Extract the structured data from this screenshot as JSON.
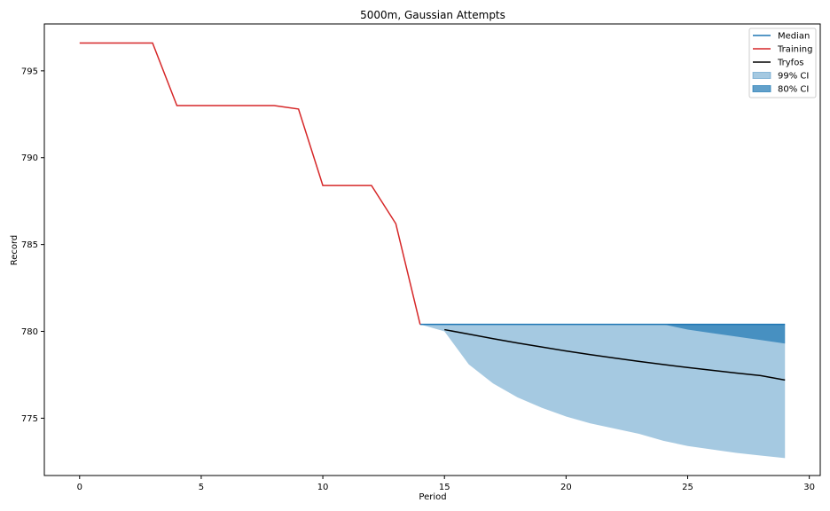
{
  "chart_data": {
    "type": "line",
    "title": "5000m, Gaussian Attempts",
    "xlabel": "Period",
    "ylabel": "Record",
    "xlim": [
      -1.45,
      30.45
    ],
    "ylim": [
      771.7,
      797.7
    ],
    "xticks": [
      0,
      5,
      10,
      15,
      20,
      25,
      30
    ],
    "yticks": [
      775,
      780,
      785,
      790,
      795
    ],
    "grid": false,
    "legend_position": "top-right",
    "colors": {
      "median": "#1f77b4",
      "training": "#d62728",
      "tryfos": "#000000",
      "ci99": "#1f77b4",
      "ci80": "#1f77b4"
    },
    "legend": [
      {
        "label": "Median",
        "kind": "line",
        "color": "#1f77b4"
      },
      {
        "label": "Training",
        "kind": "line",
        "color": "#d62728"
      },
      {
        "label": "Tryfos",
        "kind": "line",
        "color": "#000000"
      },
      {
        "label": "99% CI",
        "kind": "patch",
        "color": "#1f77b4",
        "opacity": 0.4
      },
      {
        "label": "80% CI",
        "kind": "patch",
        "color": "#1f77b4",
        "opacity": 0.7
      }
    ],
    "series": {
      "training": {
        "name": "Training",
        "x": [
          0,
          1,
          2,
          3,
          4,
          5,
          6,
          7,
          8,
          9,
          10,
          11,
          12,
          13,
          14
        ],
        "y": [
          796.6,
          796.6,
          796.6,
          796.6,
          793.0,
          793.0,
          793.0,
          793.0,
          793.0,
          792.8,
          788.4,
          788.4,
          788.4,
          786.2,
          780.4
        ]
      },
      "median": {
        "name": "Median",
        "x": [
          14,
          15,
          16,
          17,
          18,
          19,
          20,
          21,
          22,
          23,
          24,
          25,
          26,
          27,
          28,
          29
        ],
        "y": [
          780.4,
          780.4,
          780.4,
          780.4,
          780.4,
          780.4,
          780.4,
          780.4,
          780.4,
          780.4,
          780.4,
          780.4,
          780.4,
          780.4,
          780.4,
          780.4
        ]
      },
      "tryfos": {
        "name": "Tryfos",
        "x": [
          15,
          16,
          17,
          18,
          19,
          20,
          21,
          22,
          23,
          24,
          25,
          26,
          27,
          28,
          29
        ],
        "y": [
          780.1,
          779.84,
          779.58,
          779.33,
          779.1,
          778.87,
          778.66,
          778.46,
          778.27,
          778.09,
          777.92,
          777.76,
          777.6,
          777.45,
          777.2
        ]
      },
      "ci99": {
        "name": "99% CI",
        "x": [
          14,
          15,
          16,
          17,
          18,
          19,
          20,
          21,
          22,
          23,
          24,
          25,
          26,
          27,
          28,
          29
        ],
        "upper": [
          780.4,
          780.4,
          780.4,
          780.4,
          780.4,
          780.4,
          780.4,
          780.4,
          780.4,
          780.4,
          780.4,
          780.4,
          780.4,
          780.4,
          780.4,
          780.4
        ],
        "lower": [
          780.4,
          780.0,
          778.1,
          777.0,
          776.2,
          775.6,
          775.1,
          774.7,
          774.4,
          774.1,
          773.7,
          773.4,
          773.2,
          773.0,
          772.85,
          772.7
        ]
      },
      "ci80": {
        "name": "80% CI",
        "x": [
          14,
          15,
          16,
          17,
          18,
          19,
          20,
          21,
          22,
          23,
          24,
          25,
          26,
          27,
          28,
          29
        ],
        "upper": [
          780.4,
          780.4,
          780.4,
          780.4,
          780.4,
          780.4,
          780.4,
          780.4,
          780.4,
          780.4,
          780.4,
          780.4,
          780.4,
          780.4,
          780.4,
          780.4
        ],
        "lower": [
          780.4,
          780.4,
          780.4,
          780.4,
          780.4,
          780.4,
          780.4,
          780.4,
          780.4,
          780.4,
          780.4,
          780.1,
          779.9,
          779.7,
          779.5,
          779.3
        ]
      }
    }
  }
}
